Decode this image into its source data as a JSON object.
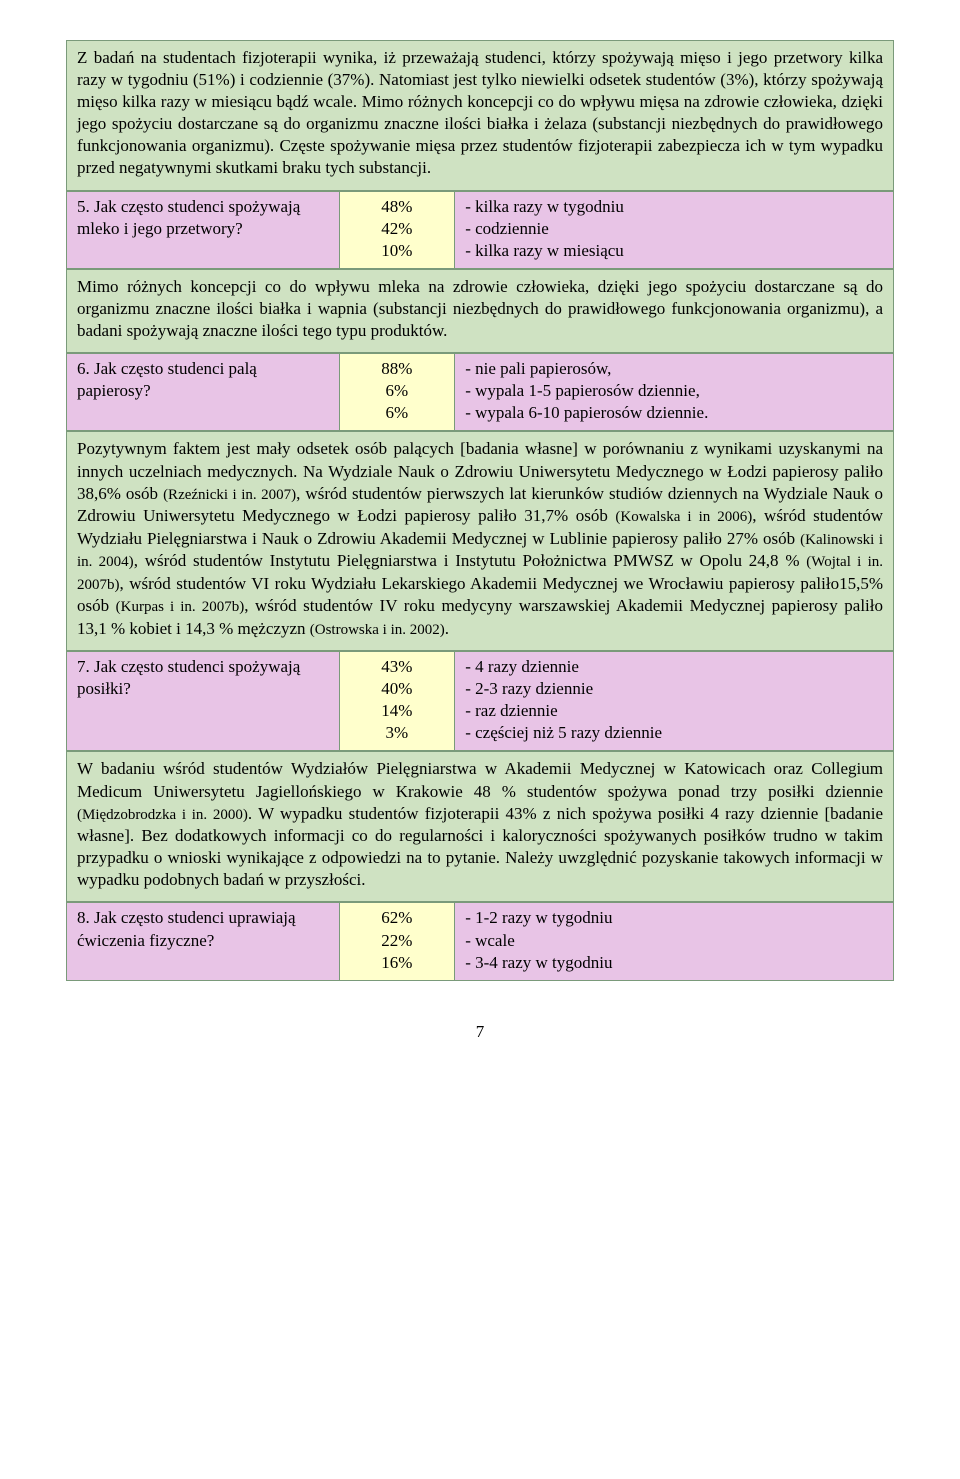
{
  "colors": {
    "analysis_bg": "#cfe2c2",
    "question_bg": "#e8c4e6",
    "percent_bg": "#ffffcc",
    "border": "#7a9a7a"
  },
  "sections": [
    {
      "analysis": "Z badań na studentach fizjoterapii wynika, iż przeważają studenci, którzy spożywają mięso i jego przetwory kilka razy w tygodniu (51%) i codziennie (37%). Natomiast jest tylko niewielki odsetek studentów (3%), którzy spożywają mięso kilka razy w miesiącu bądź wcale. Mimo różnych koncepcji co do wpływu mięsa na zdrowie człowieka, dzięki jego spożyciu dostarczane są do organizmu znaczne ilości białka i żelaza (substancji niezbędnych do prawidłowego funkcjonowania organizmu). Częste spożywanie mięsa przez studentów fizjoterapii zabezpiecza ich w tym wypadku przed negatywnymi skutkami braku tych substancji."
    },
    {
      "question": "5. Jak często studenci spożywają mleko i jego przetwory?",
      "percents": [
        "48%",
        "42%",
        "10%"
      ],
      "answers": [
        "- kilka razy w tygodniu",
        "- codziennie",
        "- kilka razy w miesiącu"
      ]
    },
    {
      "analysis": "Mimo różnych koncepcji co do wpływu mleka na zdrowie człowieka, dzięki jego spożyciu dostarczane są do organizmu znaczne ilości białka i wapnia (substancji niezbędnych do prawidłowego funkcjonowania organizmu), a badani spożywają znaczne ilości tego typu produktów."
    },
    {
      "question": "6. Jak często studenci palą papierosy?",
      "percents": [
        "88%",
        "6%",
        "6%"
      ],
      "answers": [
        "- nie pali papierosów,",
        "- wypala 1-5 papierosów dziennie,",
        "- wypala 6-10 papierosów dziennie."
      ]
    },
    {
      "analysis_html": "Pozytywnym faktem jest mały odsetek osób palących [badania własne] w porównaniu z wynikami uzyskanymi na innych uczelniach medycznych. Na Wydziale Nauk o Zdrowiu Uniwersytetu Medycznego w Łodzi papierosy paliło 38,6% osób <span class=\"small\">(Rzeźnicki i in. 2007)</span>, wśród studentów pierwszych lat kierunków studiów dziennych na Wydziale Nauk o Zdrowiu Uniwersytetu Medycznego w Łodzi papierosy paliło 31,7% osób <span class=\"small\">(Kowalska i in 2006)</span>, wśród studentów Wydziału Pielęgniarstwa i Nauk o Zdrowiu Akademii Medycznej w Lublinie papierosy paliło 27%  osób <span class=\"small\">(Kalinowski i in. 2004)</span>, wśród studentów Instytutu Pielęgniarstwa i Instytutu Położnictwa PMWSZ w Opolu 24,8 % <span class=\"small\">(Wojtal i in. 2007b)</span>, wśród studentów VI roku Wydziału Lekarskiego Akademii Medycznej we Wrocławiu papierosy paliło15,5% osób <span class=\"small\">(Kurpas i in. 2007b)</span>, wśród studentów IV roku medycyny warszawskiej Akademii Medycznej papierosy paliło 13,1 % kobiet i 14,3 % mężczyzn <span class=\"small\">(Ostrowska i in. 2002)</span>."
    },
    {
      "question": "7. Jak często studenci spożywają posiłki?",
      "percents": [
        "43%",
        "40%",
        "14%",
        "3%"
      ],
      "answers": [
        "- 4 razy dziennie",
        "- 2-3 razy dziennie",
        "- raz dziennie",
        "- częściej niż 5 razy dziennie"
      ]
    },
    {
      "analysis_html": "W badaniu wśród studentów Wydziałów Pielęgniarstwa w Akademii Medycznej w Katowicach oraz Collegium Medicum Uniwersytetu Jagiellońskiego w Krakowie 48 % studentów spożywa ponad trzy posiłki dziennie <span class=\"small\">(Międzobrodzka i in. 2000)</span>. W wypadku studentów fizjoterapii 43% z nich spożywa posiłki 4 razy dziennie [badanie własne]. Bez dodatkowych informacji co do regularności i kaloryczności spożywanych posiłków trudno w takim przypadku o wnioski wynikające z odpowiedzi na to pytanie. Należy uwzględnić pozyskanie takowych informacji w wypadku podobnych badań w przyszłości."
    },
    {
      "question": "8. Jak często studenci uprawiają ćwiczenia fizyczne?",
      "percents": [
        "62%",
        "22%",
        "16%"
      ],
      "answers": [
        "- 1-2 razy w tygodniu",
        "- wcale",
        "- 3-4 razy w tygodniu"
      ]
    }
  ],
  "page_number": "7"
}
